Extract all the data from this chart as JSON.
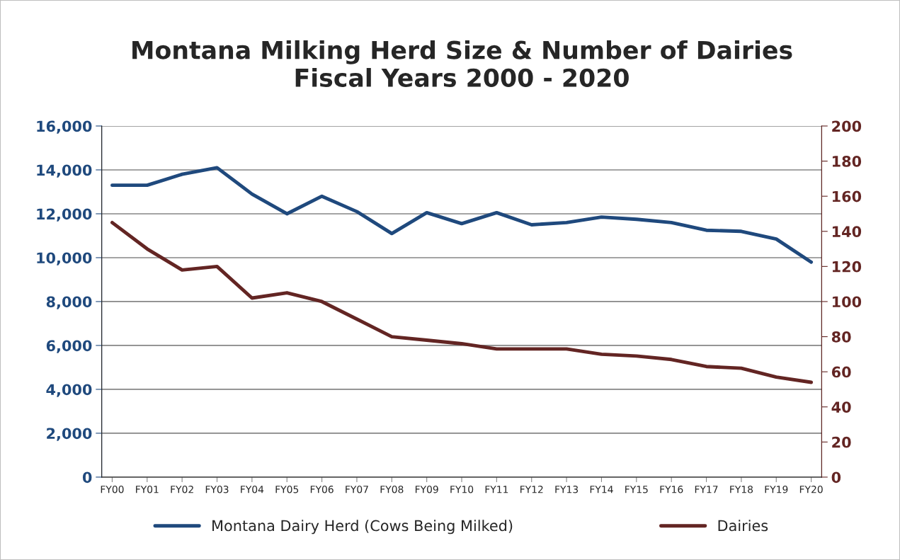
{
  "chart_data": {
    "type": "line",
    "title": "Montana Milking Herd Size & Number of Dairies\nFiscal Years 2000 - 2020",
    "categories": [
      "FY00",
      "FY01",
      "FY02",
      "FY03",
      "FY04",
      "FY05",
      "FY06",
      "FY07",
      "FY08",
      "FY09",
      "FY10",
      "FY11",
      "FY12",
      "FY13",
      "FY14",
      "FY15",
      "FY16",
      "FY17",
      "FY18",
      "FY19",
      "FY20"
    ],
    "series": [
      {
        "name": "Montana Dairy Herd (Cows Being Milked)",
        "color": "#1f497d",
        "values": [
          13300,
          13300,
          13800,
          14100,
          12900,
          12000,
          12800,
          12100,
          11100,
          12050,
          11550,
          12050,
          11500,
          11600,
          11850,
          11750,
          11600,
          11250,
          11200,
          10850,
          9800
        ]
      },
      {
        "name": "Dairies",
        "color": "#632523",
        "axis": "y2",
        "values": [
          145,
          130,
          118,
          120,
          102,
          105,
          100,
          90,
          80,
          78,
          76,
          73,
          73,
          73,
          70,
          69,
          67,
          63,
          62,
          57,
          54
        ]
      }
    ],
    "ylim": [
      0,
      16000
    ],
    "yticks": [
      {
        "value": 0,
        "label": "0"
      },
      {
        "value": 2000,
        "label": "2,000"
      },
      {
        "value": 4000,
        "label": "4,000"
      },
      {
        "value": 6000,
        "label": "6,000"
      },
      {
        "value": 8000,
        "label": "8,000"
      },
      {
        "value": 10000,
        "label": "10,000"
      },
      {
        "value": 12000,
        "label": "12,000"
      },
      {
        "value": 14000,
        "label": "14,000"
      },
      {
        "value": 16000,
        "label": "16,000"
      }
    ],
    "y2lim": [
      0,
      200
    ],
    "y2ticks": [
      0,
      20,
      40,
      60,
      80,
      100,
      120,
      140,
      160,
      180,
      200
    ],
    "grid": "y",
    "legend": "bottom",
    "marker": "none",
    "line_style": "solid"
  }
}
